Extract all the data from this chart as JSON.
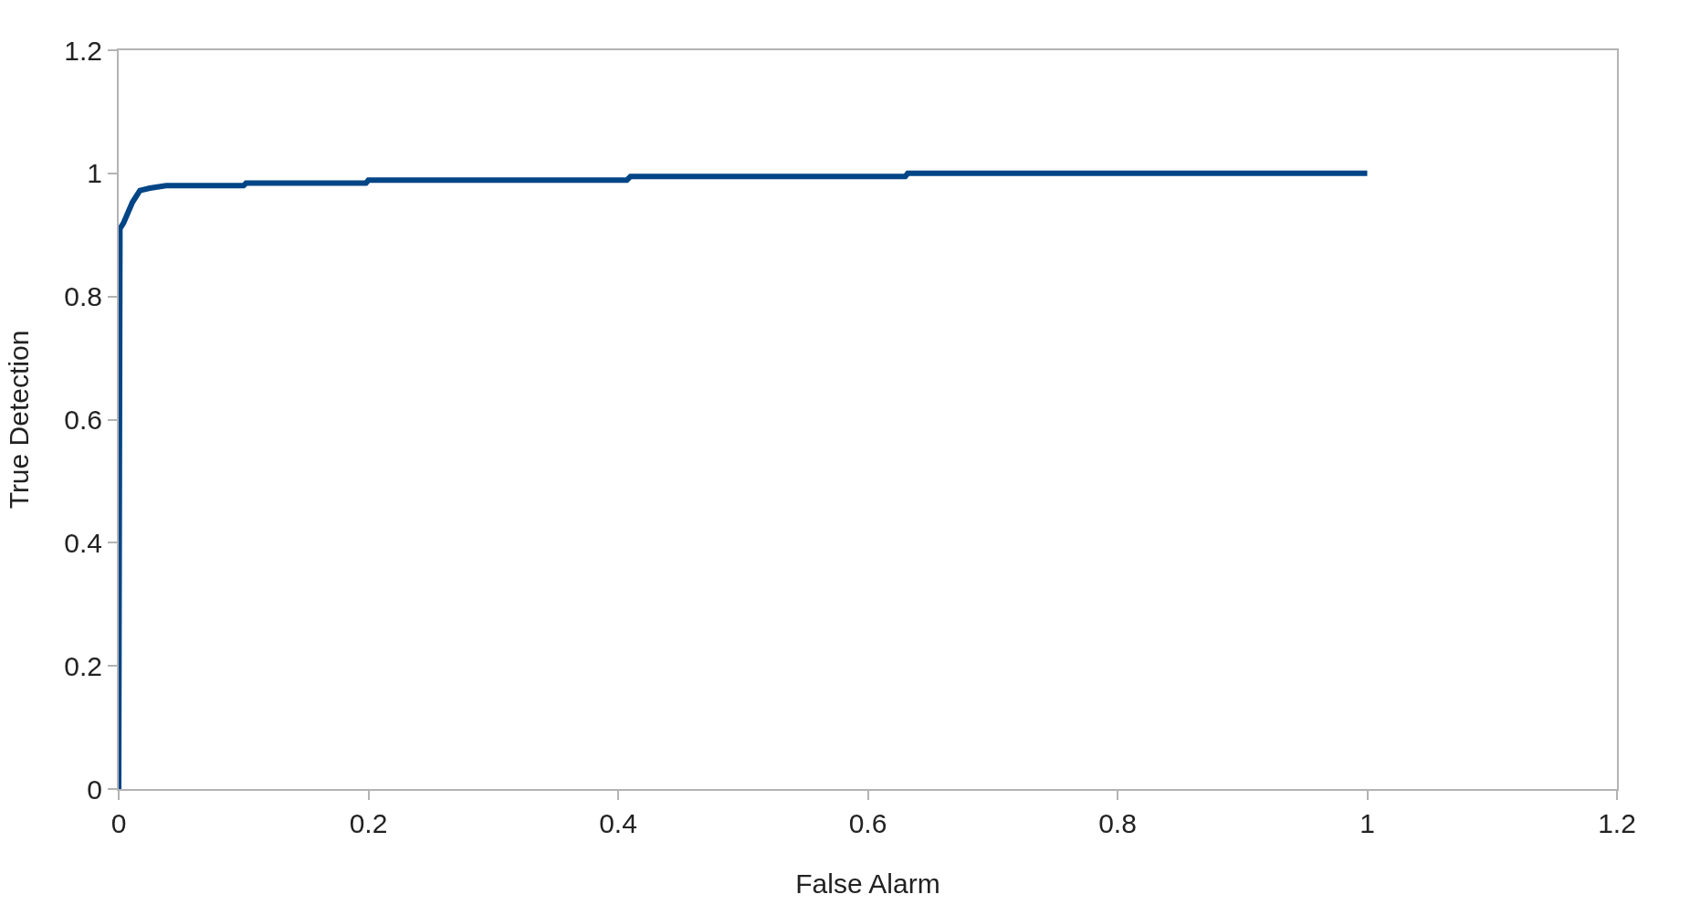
{
  "chart_data": {
    "type": "line",
    "xlabel": "False Alarm",
    "ylabel": "True Detection",
    "x": [
      0,
      0.001,
      0.004,
      0.011,
      0.017,
      0.025,
      0.038,
      0.1,
      0.102,
      0.198,
      0.2,
      0.407,
      0.41,
      0.63,
      0.632,
      1
    ],
    "values": [
      0,
      0.91,
      0.92,
      0.953,
      0.972,
      0.976,
      0.98,
      0.98,
      0.984,
      0.984,
      0.989,
      0.989,
      0.995,
      0.995,
      1,
      1
    ],
    "color": "#004586",
    "xlim": [
      0,
      1.2
    ],
    "xticks": [
      0,
      0.2,
      0.4,
      0.6,
      0.8,
      1,
      1.2
    ],
    "ylim": [
      0,
      1.2
    ],
    "yticks": [
      0,
      0.2,
      0.4,
      0.6,
      0.8,
      1,
      1.2
    ],
    "grid": false,
    "marker": "none",
    "line_style": "solid"
  }
}
